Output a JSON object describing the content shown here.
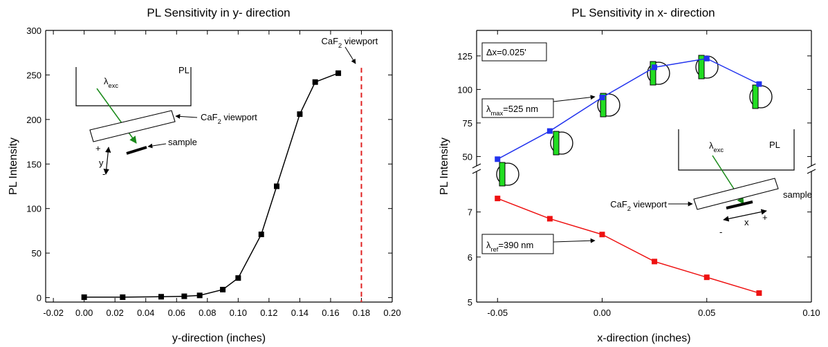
{
  "chart_data": [
    {
      "type": "line",
      "title": "PL Sensitivity in y- direction",
      "x_label": "y-direction (inches)",
      "y_label": "PL Intensity",
      "x": [
        0.0,
        0.025,
        0.05,
        0.065,
        0.075,
        0.09,
        0.1,
        0.115,
        0.125,
        0.14,
        0.15,
        0.165
      ],
      "series": [
        {
          "color": "#000000",
          "marker": "square",
          "values": [
            0.5,
            0.5,
            1,
            1.5,
            2.5,
            9,
            22,
            71,
            125,
            206,
            242,
            252
          ]
        }
      ],
      "xlim": [
        -0.025,
        0.2
      ],
      "xticks": [
        -0.02,
        {
          "value": 0.0,
          "label": "0.00"
        },
        0.02,
        0.04,
        0.06,
        0.08,
        {
          "value": 0.1,
          "label": "0.10"
        },
        0.12,
        0.14,
        0.16,
        0.18,
        {
          "value": 0.2,
          "label": "0.20"
        }
      ],
      "ylim": [
        -5,
        300
      ],
      "yticks": [
        0,
        50,
        100,
        150,
        200,
        250,
        300
      ],
      "reference_line": {
        "x": 0.18,
        "color": "#e02020",
        "style": "dashed",
        "label": {
          "text": "CaF",
          "sub": "2",
          "after": " viewport"
        }
      },
      "annotations": [
        {
          "text": "PL"
        },
        {
          "text": "λ",
          "sub": "exc"
        },
        {
          "text": "CaF",
          "sub": "2",
          "after": " viewport"
        },
        {
          "text": "sample"
        },
        {
          "text": "+"
        },
        {
          "text": "y"
        },
        {
          "text": "-"
        }
      ]
    },
    {
      "type": "line",
      "title": "PL Sensitivity in x- direction",
      "x_label": "x-direction (inches)",
      "y_label": "PL Intensity",
      "x": [
        -0.05,
        -0.025,
        0.0,
        0.025,
        0.05,
        0.075
      ],
      "xlim": [
        -0.06,
        0.1
      ],
      "xticks": [
        -0.05,
        {
          "value": 0.0,
          "label": "0.00"
        },
        0.05,
        {
          "value": 0.1,
          "label": "0.10"
        }
      ],
      "broken_axis": true,
      "panels": [
        {
          "ylim": [
            43,
            144
          ],
          "yticks": [
            50,
            75,
            100,
            125
          ]
        },
        {
          "ylim": [
            5,
            7.9
          ],
          "yticks": [
            5,
            6,
            7
          ]
        }
      ],
      "series": [
        {
          "color": "#2233ee",
          "marker": "square",
          "panel": 0,
          "values": [
            48,
            69,
            94,
            116.5,
            123,
            104
          ]
        },
        {
          "color": "#ee1111",
          "marker": "square",
          "panel": 1,
          "values": [
            7.3,
            6.85,
            6.5,
            5.9,
            5.55,
            5.2
          ]
        }
      ],
      "annotations": [
        {
          "text": "Δx=0.025'"
        },
        {
          "text": "λ",
          "sub": "max",
          "after": "=525 nm"
        },
        {
          "text": "λ",
          "sub": "ref",
          "after": "=390 nm"
        },
        {
          "text": "PL"
        },
        {
          "text": "λ",
          "sub": "exc"
        },
        {
          "text": "CaF",
          "sub": "2",
          "after": " viewport"
        },
        {
          "text": "sample"
        },
        {
          "text": "-"
        },
        {
          "text": "x"
        },
        {
          "text": "+"
        }
      ]
    }
  ]
}
